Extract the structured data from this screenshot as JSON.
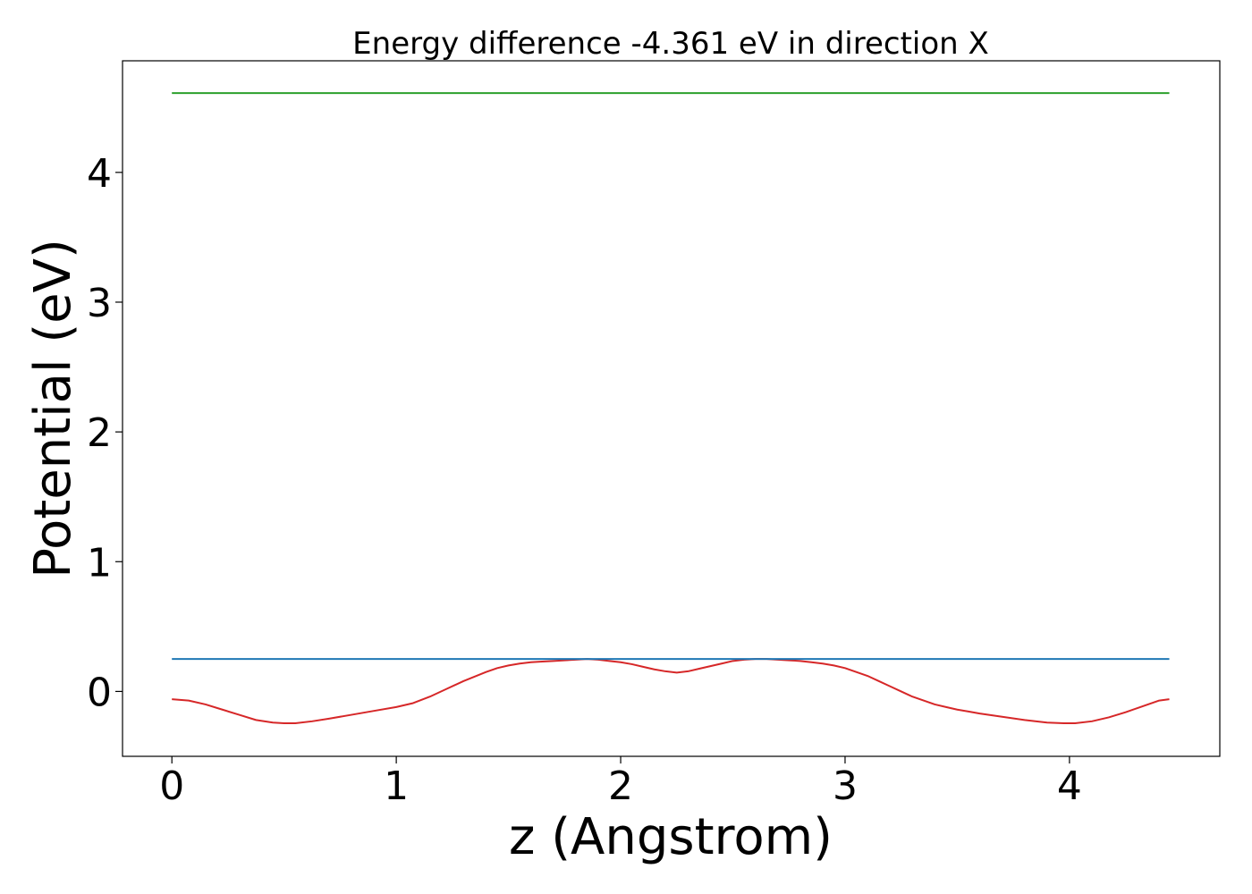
{
  "chart_data": {
    "type": "line",
    "title": "Energy difference -4.361 eV in direction X",
    "xlabel": "z (Angstrom)",
    "ylabel": "Potential (eV)",
    "xlim": [
      -0.22,
      4.67
    ],
    "ylim": [
      -0.5,
      4.86
    ],
    "xticks": [
      0,
      1,
      2,
      3,
      4
    ],
    "yticks": [
      0,
      1,
      2,
      3,
      4
    ],
    "grid": false,
    "series": [
      {
        "color": "#d62728",
        "x": [
          0.0,
          0.075,
          0.15,
          0.225,
          0.3,
          0.375,
          0.45,
          0.5,
          0.55,
          0.625,
          0.7,
          0.8,
          0.9,
          1.0,
          1.075,
          1.15,
          1.225,
          1.3,
          1.4,
          1.45,
          1.5,
          1.55,
          1.6,
          1.65,
          1.7,
          1.75,
          1.8,
          1.85,
          1.9,
          1.95,
          2.0,
          2.05,
          2.1,
          2.15,
          2.2,
          2.25,
          2.3,
          2.35,
          2.4,
          2.45,
          2.5,
          2.55,
          2.6,
          2.65,
          2.7,
          2.75,
          2.8,
          2.85,
          2.9,
          2.95,
          3.0,
          3.05,
          3.1,
          3.15,
          3.2,
          3.25,
          3.3,
          3.35,
          3.4,
          3.45,
          3.5,
          3.55,
          3.6,
          3.7,
          3.8,
          3.9,
          3.975,
          4.025,
          4.1,
          4.175,
          4.25,
          4.3,
          4.35,
          4.4,
          4.445
        ],
        "values": [
          -0.06,
          -0.07,
          -0.1,
          -0.14,
          -0.18,
          -0.22,
          -0.24,
          -0.245,
          -0.245,
          -0.23,
          -0.21,
          -0.18,
          -0.15,
          -0.12,
          -0.09,
          -0.04,
          0.02,
          0.08,
          0.15,
          0.18,
          0.2,
          0.215,
          0.225,
          0.23,
          0.235,
          0.24,
          0.245,
          0.25,
          0.245,
          0.235,
          0.225,
          0.21,
          0.19,
          0.17,
          0.155,
          0.145,
          0.155,
          0.175,
          0.195,
          0.215,
          0.235,
          0.245,
          0.25,
          0.25,
          0.245,
          0.24,
          0.235,
          0.225,
          0.215,
          0.2,
          0.18,
          0.15,
          0.12,
          0.08,
          0.04,
          0.0,
          -0.04,
          -0.07,
          -0.1,
          -0.12,
          -0.14,
          -0.155,
          -0.17,
          -0.195,
          -0.22,
          -0.24,
          -0.245,
          -0.245,
          -0.23,
          -0.2,
          -0.16,
          -0.13,
          -0.1,
          -0.07,
          -0.06
        ]
      },
      {
        "color": "#1f77b4",
        "x": [
          0.0,
          4.445
        ],
        "values": [
          0.25,
          0.25
        ]
      },
      {
        "color": "#2ca02c",
        "x": [
          0.0,
          4.445
        ],
        "values": [
          4.611,
          4.611
        ]
      }
    ]
  }
}
